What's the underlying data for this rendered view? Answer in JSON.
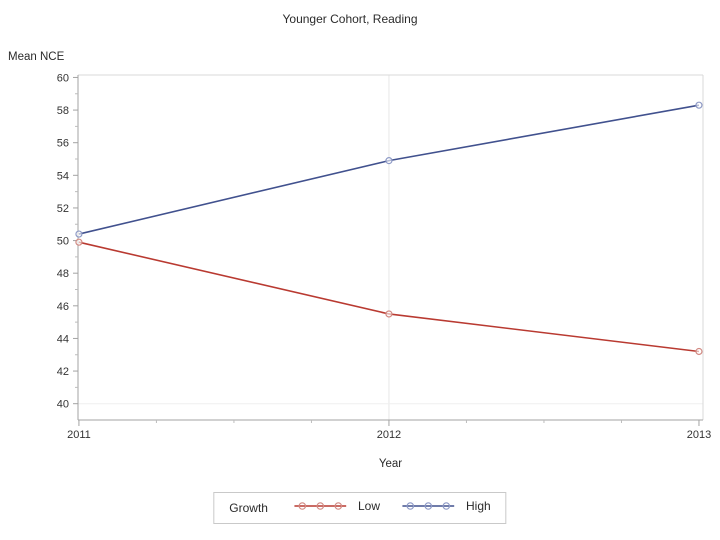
{
  "chart_data": {
    "type": "line",
    "title": "Younger Cohort, Reading",
    "xlabel": "Year",
    "ylabel": "Mean NCE",
    "x": [
      2011,
      2012,
      2013
    ],
    "series": [
      {
        "name": "Low",
        "values": [
          49.9,
          45.5,
          43.2
        ],
        "color": "#b93a31",
        "marker_color": "#d28b84"
      },
      {
        "name": "High",
        "values": [
          50.4,
          54.9,
          58.3
        ],
        "color": "#41518e",
        "marker_color": "#8e9ac6"
      }
    ],
    "xlim": [
      2010.997,
      2013.013
    ],
    "ylim": [
      39.0,
      60.15
    ],
    "yticks": [
      60,
      58,
      56,
      54,
      52,
      50,
      48,
      46,
      44,
      42,
      40
    ],
    "xticks": [
      2011,
      2012,
      2013
    ],
    "y_minor_step": 1,
    "x_minor_step": 0.25,
    "grid": {
      "vertical_at": [
        2012
      ],
      "horizontal_at": [
        40
      ]
    },
    "legend": {
      "title": "Growth",
      "position": "bottom",
      "entries": [
        "Low",
        "High"
      ]
    },
    "style": {
      "axis_color": "#a3a3a3",
      "frame_color": "#d9d9d9",
      "grid_color": "#e7e7e7",
      "tick_label_color": "#333333"
    }
  }
}
